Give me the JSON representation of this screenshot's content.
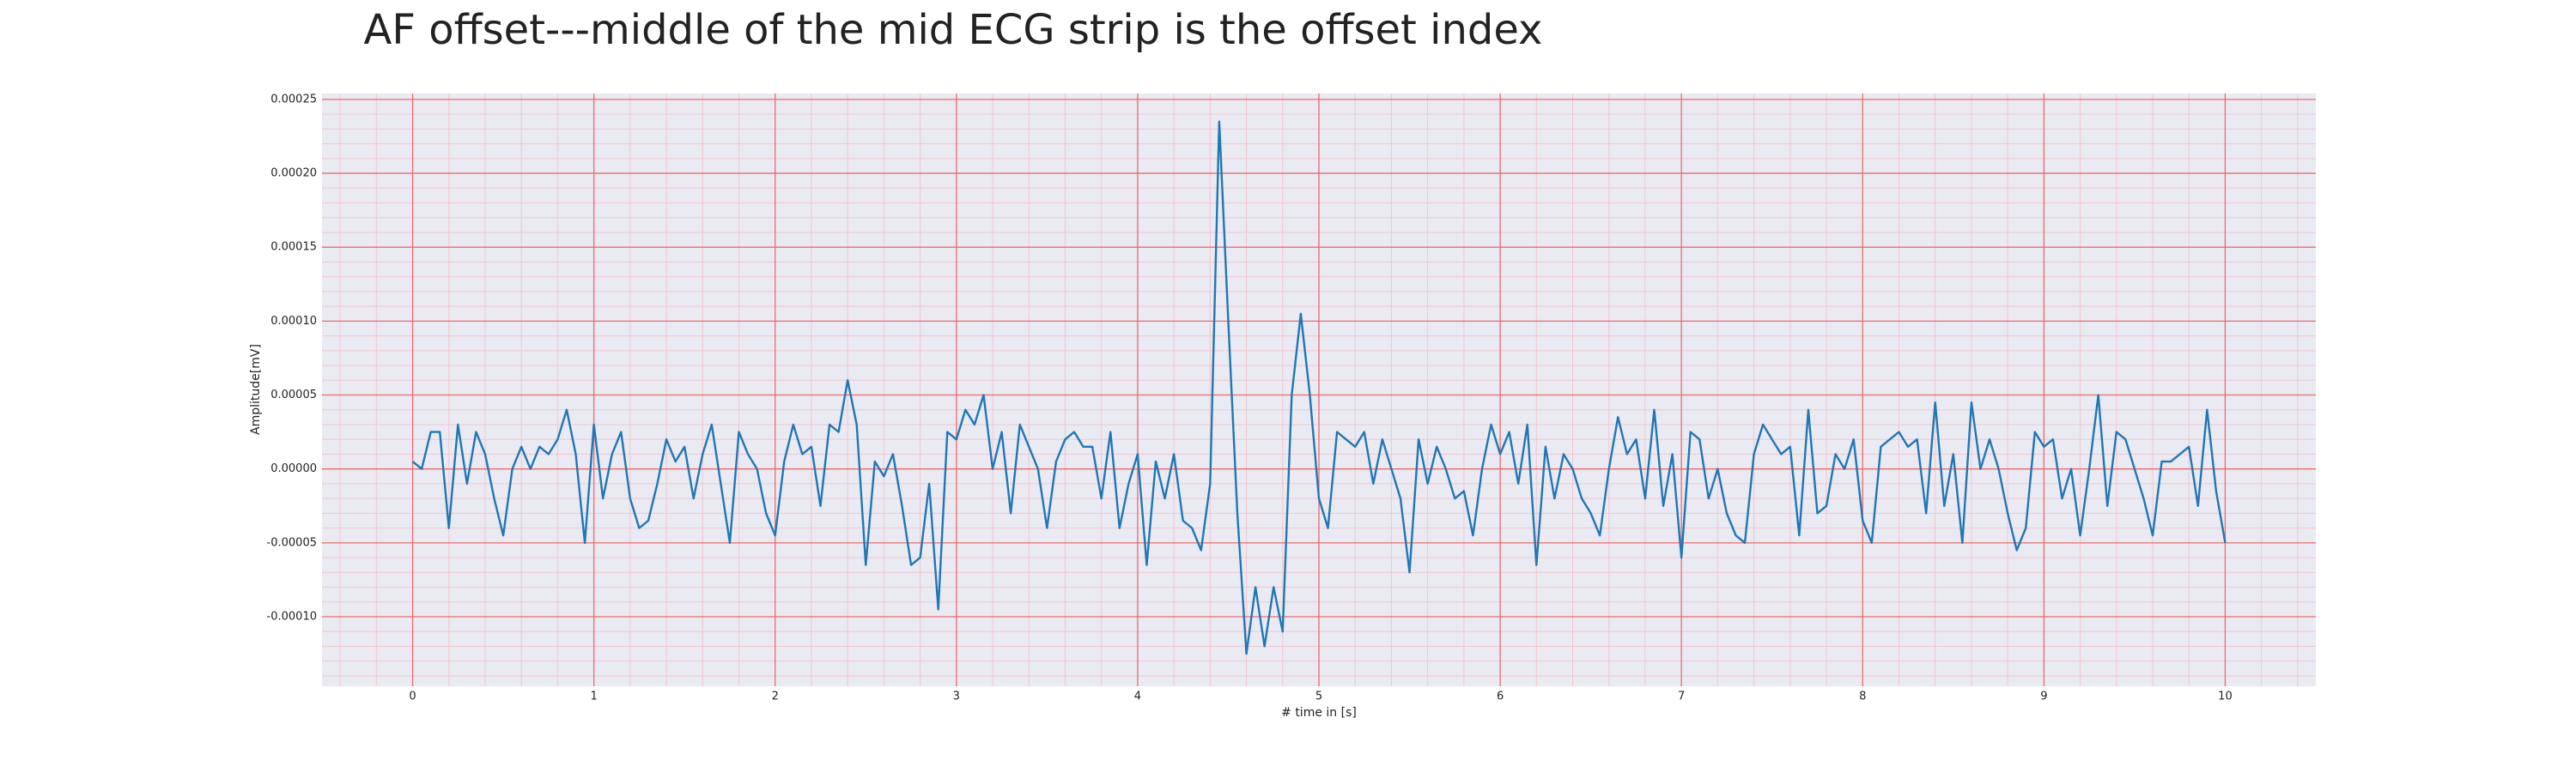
{
  "chart_data": {
    "type": "line",
    "title": "AF offset---middle of the mid ECG strip is the offset index",
    "xlabel": "# time in [s]",
    "ylabel": "Amplitude[mV]",
    "color": "#1f77b4",
    "background": "#eaeaf2",
    "grid": true,
    "grid_color": "#ee6a6a",
    "minor_grid": true,
    "minor_grid_color": "#f3c6cf",
    "xlim": [
      -0.5,
      10.5
    ],
    "ylim": [
      -0.000147,
      0.000254
    ],
    "xticks": [
      0,
      1,
      2,
      3,
      4,
      5,
      6,
      7,
      8,
      9,
      10
    ],
    "yticks": [
      {
        "value": -0.0001,
        "label": "-0.00010"
      },
      {
        "value": -5e-05,
        "label": "-0.00005"
      },
      {
        "value": 0,
        "label": "0.00000"
      },
      {
        "value": 5e-05,
        "label": "0.00005"
      },
      {
        "value": 0.0001,
        "label": "0.00010"
      },
      {
        "value": 0.00015,
        "label": "0.00015"
      },
      {
        "value": 0.0002,
        "label": "0.00020"
      },
      {
        "value": 0.00025,
        "label": "0.00025"
      }
    ],
    "x": [
      0,
      0.05,
      0.1,
      0.15,
      0.2,
      0.25,
      0.3,
      0.35,
      0.4,
      0.45,
      0.5,
      0.55,
      0.6,
      0.65,
      0.7,
      0.75,
      0.8,
      0.85,
      0.9,
      0.95,
      1,
      1.05,
      1.1,
      1.15,
      1.2,
      1.25,
      1.3,
      1.35,
      1.4,
      1.45,
      1.5,
      1.55,
      1.6,
      1.65,
      1.7,
      1.75,
      1.8,
      1.85,
      1.9,
      1.95,
      2,
      2.05,
      2.1,
      2.15,
      2.2,
      2.25,
      2.3,
      2.35,
      2.4,
      2.45,
      2.5,
      2.55,
      2.6,
      2.65,
      2.7,
      2.75,
      2.8,
      2.85,
      2.9,
      2.95,
      3,
      3.05,
      3.1,
      3.15,
      3.2,
      3.25,
      3.3,
      3.35,
      3.4,
      3.45,
      3.5,
      3.55,
      3.6,
      3.65,
      3.7,
      3.75,
      3.8,
      3.85,
      3.9,
      3.95,
      4,
      4.05,
      4.1,
      4.15,
      4.2,
      4.25,
      4.3,
      4.35,
      4.4,
      4.45,
      4.5,
      4.55,
      4.6,
      4.65,
      4.7,
      4.75,
      4.8,
      4.85,
      4.9,
      4.95,
      5,
      5.05,
      5.1,
      5.15,
      5.2,
      5.25,
      5.3,
      5.35,
      5.4,
      5.45,
      5.5,
      5.55,
      5.6,
      5.65,
      5.7,
      5.75,
      5.8,
      5.85,
      5.9,
      5.95,
      6,
      6.05,
      6.1,
      6.15,
      6.2,
      6.25,
      6.3,
      6.35,
      6.4,
      6.45,
      6.5,
      6.55,
      6.6,
      6.65,
      6.7,
      6.75,
      6.8,
      6.85,
      6.9,
      6.95,
      7,
      7.05,
      7.1,
      7.15,
      7.2,
      7.25,
      7.3,
      7.35,
      7.4,
      7.45,
      7.5,
      7.55,
      7.6,
      7.65,
      7.7,
      7.75,
      7.8,
      7.85,
      7.9,
      7.95,
      8,
      8.05,
      8.1,
      8.15,
      8.2,
      8.25,
      8.3,
      8.35,
      8.4,
      8.45,
      8.5,
      8.55,
      8.6,
      8.65,
      8.7,
      8.75,
      8.8,
      8.85,
      8.9,
      8.95,
      9,
      9.05,
      9.1,
      9.15,
      9.2,
      9.25,
      9.3,
      9.35,
      9.4,
      9.45,
      9.5,
      9.55,
      9.6,
      9.65,
      9.7,
      9.75,
      9.8,
      9.85,
      9.9,
      9.95,
      10
    ],
    "values": [
      5e-06,
      0,
      2.5e-05,
      2.5e-05,
      -4e-05,
      3e-05,
      -1e-05,
      2.5e-05,
      1e-05,
      -2e-05,
      -4.5e-05,
      0,
      1.5e-05,
      0,
      1.5e-05,
      1e-05,
      2e-05,
      4e-05,
      1e-05,
      -5e-05,
      3e-05,
      -2e-05,
      1e-05,
      2.5e-05,
      -2e-05,
      -4e-05,
      -3.5e-05,
      -1e-05,
      2e-05,
      5e-06,
      1.5e-05,
      -2e-05,
      1e-05,
      3e-05,
      -1e-05,
      -5e-05,
      2.5e-05,
      1e-05,
      0,
      -3e-05,
      -4.5e-05,
      5e-06,
      3e-05,
      1e-05,
      1.5e-05,
      -2.5e-05,
      3e-05,
      2.5e-05,
      6e-05,
      3e-05,
      -6.5e-05,
      5e-06,
      -5e-06,
      1e-05,
      -2.5e-05,
      -6.5e-05,
      -6e-05,
      -1e-05,
      -9.5e-05,
      2.5e-05,
      2e-05,
      4e-05,
      3e-05,
      5e-05,
      0,
      2.5e-05,
      -3e-05,
      3e-05,
      1.5e-05,
      0,
      -4e-05,
      5e-06,
      2e-05,
      2.5e-05,
      1.5e-05,
      1.5e-05,
      -2e-05,
      2.5e-05,
      -4e-05,
      -1e-05,
      1e-05,
      -6.5e-05,
      5e-06,
      -2e-05,
      1e-05,
      -3.5e-05,
      -4e-05,
      -5.5e-05,
      -1e-05,
      0.000235,
      0.0001,
      -3e-05,
      -0.000125,
      -8e-05,
      -0.00012,
      -8e-05,
      -0.00011,
      5e-05,
      0.000105,
      5e-05,
      -2e-05,
      -4e-05,
      2.5e-05,
      2e-05,
      1.5e-05,
      2.5e-05,
      -1e-05,
      2e-05,
      0,
      -2e-05,
      -7e-05,
      2e-05,
      -1e-05,
      1.5e-05,
      0,
      -2e-05,
      -1.5e-05,
      -4.5e-05,
      0,
      3e-05,
      1e-05,
      2.5e-05,
      -1e-05,
      3e-05,
      -6.5e-05,
      1.5e-05,
      -2e-05,
      1e-05,
      0,
      -2e-05,
      -3e-05,
      -4.5e-05,
      0,
      3.5e-05,
      1e-05,
      2e-05,
      -2e-05,
      4e-05,
      -2.5e-05,
      1e-05,
      -6e-05,
      2.5e-05,
      2e-05,
      -2e-05,
      0,
      -3e-05,
      -4.5e-05,
      -5e-05,
      1e-05,
      3e-05,
      2e-05,
      1e-05,
      1.5e-05,
      -4.5e-05,
      4e-05,
      -3e-05,
      -2.5e-05,
      1e-05,
      0,
      2e-05,
      -3.5e-05,
      -5e-05,
      1.5e-05,
      2e-05,
      2.5e-05,
      1.5e-05,
      2e-05,
      -3e-05,
      4.5e-05,
      -2.5e-05,
      1e-05,
      -5e-05,
      4.5e-05,
      0,
      2e-05,
      0,
      -3e-05,
      -5.5e-05,
      -4e-05,
      2.5e-05,
      1.5e-05,
      2e-05,
      -2e-05,
      0,
      -4.5e-05,
      0,
      5e-05,
      -2.5e-05,
      2.5e-05,
      2e-05,
      0,
      -2e-05,
      -4.5e-05,
      5e-06,
      5e-06,
      1e-05,
      1.5e-05,
      -2.5e-05,
      4e-05,
      -1.5e-05,
      -5e-05
    ]
  }
}
